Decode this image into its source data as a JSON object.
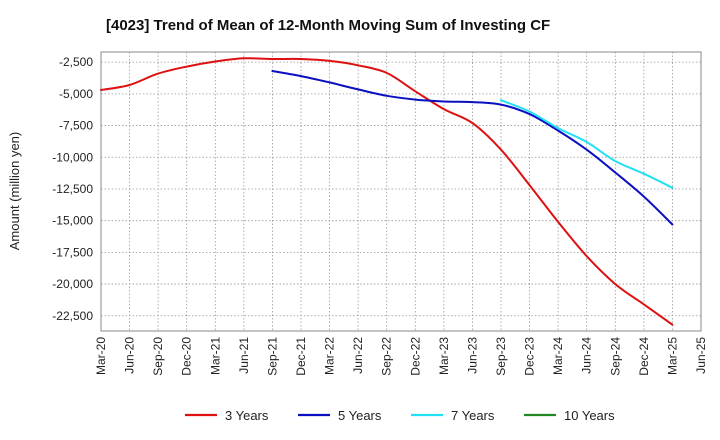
{
  "chart_data": {
    "type": "line",
    "title": "[4023]  Trend of Mean of 12-Month Moving Sum of Investing CF",
    "ylabel": "Amount (million yen)",
    "xlabel": "",
    "x_ticks": [
      "Mar-20",
      "Jun-20",
      "Sep-20",
      "Dec-20",
      "Mar-21",
      "Jun-21",
      "Sep-21",
      "Dec-21",
      "Mar-22",
      "Jun-22",
      "Sep-22",
      "Dec-22",
      "Mar-23",
      "Jun-23",
      "Sep-23",
      "Dec-23",
      "Mar-24",
      "Jun-24",
      "Sep-24",
      "Dec-24",
      "Mar-25",
      "Jun-25"
    ],
    "y_ticks": [
      -2500,
      -5000,
      -7500,
      -10000,
      -12500,
      -15000,
      -17500,
      -20000,
      -22500
    ],
    "y_tick_labels": [
      "-2,500",
      "-5,000",
      "-7,500",
      "-10,000",
      "-12,500",
      "-15,000",
      "-17,500",
      "-20,000",
      "-22,500"
    ],
    "ylim": [
      -23700,
      -1700
    ],
    "grid": true,
    "series": [
      {
        "name": "3 Years",
        "color": "#dd1111",
        "x": [
          0,
          1,
          2,
          3,
          4,
          5,
          6,
          7,
          8,
          9,
          10,
          11,
          12,
          13,
          14,
          15,
          16,
          17,
          18,
          19,
          20
        ],
        "values": [
          -4700,
          -4300,
          -3400,
          -2850,
          -2450,
          -2200,
          -2250,
          -2250,
          -2400,
          -2750,
          -3350,
          -4800,
          -6200,
          -7300,
          -9400,
          -12200,
          -15100,
          -17800,
          -20000,
          -21600,
          -23200
        ]
      },
      {
        "name": "5 Years",
        "color": "#0a10c0",
        "x": [
          6,
          7,
          8,
          9,
          10,
          11,
          12,
          13,
          14,
          15,
          16,
          17,
          18,
          19,
          20
        ],
        "values": [
          -3200,
          -3600,
          -4100,
          -4650,
          -5150,
          -5450,
          -5600,
          -5650,
          -5850,
          -6600,
          -7900,
          -9400,
          -11200,
          -13100,
          -15300
        ]
      },
      {
        "name": "7 Years",
        "color": "#22e0f5",
        "x": [
          14,
          15,
          16,
          17,
          18,
          19,
          20
        ],
        "values": [
          -5500,
          -6400,
          -7700,
          -8800,
          -10300,
          -11300,
          -12400
        ]
      },
      {
        "name": "10 Years",
        "color": "#228822",
        "x": [],
        "values": []
      }
    ],
    "legend_position": "bottom"
  }
}
